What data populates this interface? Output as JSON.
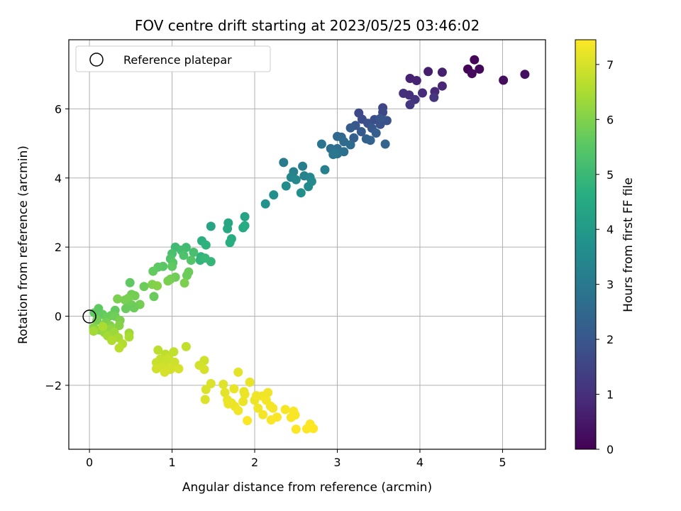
{
  "chart_data": {
    "type": "scatter",
    "title": "FOV centre drift starting at 2023/05/25 03:46:02",
    "xlabel": "Angular distance from reference (arcmin)",
    "ylabel": "Rotation from reference (arcmin)",
    "xlim": [
      -0.25,
      5.52
    ],
    "ylim": [
      -3.85,
      8.0
    ],
    "xticks": [
      0,
      1,
      2,
      3,
      4,
      5
    ],
    "xtick_labels": [
      "0",
      "1",
      "2",
      "3",
      "4",
      "5"
    ],
    "yticks": [
      -2,
      0,
      2,
      4,
      6
    ],
    "ytick_labels": [
      "−2",
      "0",
      "2",
      "4",
      "6"
    ],
    "grid": true,
    "legend": {
      "placement": "upper-left",
      "entries": [
        {
          "label": "Reference platepar",
          "marker": "open-circle",
          "x": 0,
          "y": 0
        }
      ]
    },
    "colorbar": {
      "label": "Hours from first FF file",
      "colormap": "viridis",
      "range": [
        0,
        7.45
      ],
      "ticks": [
        0,
        1,
        2,
        3,
        4,
        5,
        6,
        7
      ],
      "tick_labels": [
        "0",
        "1",
        "2",
        "3",
        "4",
        "5",
        "6",
        "7"
      ]
    },
    "series": [
      {
        "points": [
          [
            4.58,
            7.15,
            0.05
          ],
          [
            4.66,
            7.42,
            0.1
          ],
          [
            4.72,
            7.15,
            0.15
          ],
          [
            4.63,
            7.02,
            0.2
          ],
          [
            5.01,
            6.83,
            0.25
          ],
          [
            5.27,
            7.0,
            0.3
          ],
          [
            4.1,
            7.08,
            0.6
          ],
          [
            4.27,
            7.06,
            0.65
          ],
          [
            3.88,
            6.88,
            0.7
          ],
          [
            3.96,
            6.82,
            0.75
          ],
          [
            4.27,
            6.66,
            0.8
          ],
          [
            4.18,
            6.5,
            0.85
          ],
          [
            4.03,
            6.46,
            0.9
          ],
          [
            3.87,
            6.4,
            0.95
          ],
          [
            3.8,
            6.45,
            1.0
          ],
          [
            3.94,
            6.27,
            1.05
          ],
          [
            4.17,
            6.33,
            1.1
          ],
          [
            3.88,
            6.12,
            1.15
          ],
          [
            3.55,
            6.03,
            1.55
          ],
          [
            3.55,
            5.9,
            1.6
          ],
          [
            3.26,
            5.88,
            1.65
          ],
          [
            3.3,
            5.7,
            1.7
          ],
          [
            3.45,
            5.69,
            1.75
          ],
          [
            3.37,
            5.58,
            1.8
          ],
          [
            3.52,
            5.55,
            1.85
          ],
          [
            3.6,
            5.66,
            1.9
          ],
          [
            3.52,
            5.72,
            1.95
          ],
          [
            3.22,
            5.52,
            2.0
          ],
          [
            3.42,
            5.44,
            2.05
          ],
          [
            3.29,
            5.34,
            2.1
          ],
          [
            3.16,
            5.45,
            2.15
          ],
          [
            3.47,
            5.3,
            2.2
          ],
          [
            3.2,
            5.16,
            2.25
          ],
          [
            3.35,
            5.13,
            2.3
          ],
          [
            3.4,
            5.09,
            2.35
          ],
          [
            3.58,
            4.98,
            2.4
          ],
          [
            3.05,
            5.18,
            2.45
          ],
          [
            3.0,
            5.2,
            2.5
          ],
          [
            3.08,
            5.05,
            2.55
          ],
          [
            3.16,
            4.96,
            2.6
          ],
          [
            3.0,
            4.85,
            2.65
          ],
          [
            2.92,
            4.85,
            2.7
          ],
          [
            3.08,
            4.76,
            2.75
          ],
          [
            3.0,
            4.7,
            2.8
          ],
          [
            2.97,
            4.72,
            2.85
          ],
          [
            2.81,
            4.98,
            2.9
          ],
          [
            2.95,
            4.68,
            2.95
          ],
          [
            2.35,
            4.45,
            3.1
          ],
          [
            2.58,
            4.34,
            3.15
          ],
          [
            2.85,
            4.24,
            3.2
          ],
          [
            2.47,
            4.18,
            3.25
          ],
          [
            2.6,
            4.06,
            3.3
          ],
          [
            2.44,
            4.02,
            3.35
          ],
          [
            2.67,
            4.02,
            3.4
          ],
          [
            2.5,
            3.95,
            3.45
          ],
          [
            2.69,
            3.9,
            3.5
          ],
          [
            2.65,
            3.75,
            3.55
          ],
          [
            2.38,
            3.77,
            3.6
          ],
          [
            2.56,
            3.57,
            3.65
          ],
          [
            2.23,
            3.51,
            3.7
          ],
          [
            2.13,
            3.25,
            3.75
          ],
          [
            1.88,
            2.88,
            4.3
          ],
          [
            1.47,
            2.6,
            4.35
          ],
          [
            1.68,
            2.7,
            4.4
          ],
          [
            1.67,
            2.53,
            4.45
          ],
          [
            1.86,
            2.56,
            4.5
          ],
          [
            1.88,
            2.62,
            4.55
          ],
          [
            1.72,
            2.24,
            4.6
          ],
          [
            1.7,
            2.13,
            4.65
          ],
          [
            1.36,
            2.18,
            4.7
          ],
          [
            1.41,
            2.06,
            4.75
          ],
          [
            1.35,
            1.72,
            4.8
          ],
          [
            1.34,
            1.62,
            4.85
          ],
          [
            1.47,
            1.58,
            4.9
          ],
          [
            1.4,
            1.68,
            4.95
          ],
          [
            1.04,
            2.0,
            5.05
          ],
          [
            1.17,
            1.99,
            5.1
          ],
          [
            1.11,
            1.91,
            5.15
          ],
          [
            1.26,
            1.85,
            5.2
          ],
          [
            1.0,
            1.81,
            5.25
          ],
          [
            1.14,
            1.76,
            5.3
          ],
          [
            0.98,
            1.66,
            5.35
          ],
          [
            1.23,
            1.62,
            5.4
          ],
          [
            1.01,
            1.55,
            5.45
          ],
          [
            0.89,
            1.44,
            5.5
          ],
          [
            0.83,
            1.42,
            5.55
          ],
          [
            1.0,
            1.44,
            5.6
          ],
          [
            0.77,
            1.3,
            5.65
          ],
          [
            1.2,
            1.28,
            5.7
          ],
          [
            1.18,
            1.18,
            5.75
          ],
          [
            1.04,
            1.13,
            5.8
          ],
          [
            0.98,
            1.07,
            5.85
          ],
          [
            0.95,
            1.02,
            5.9
          ],
          [
            1.15,
            0.96,
            5.95
          ],
          [
            0.76,
            0.92,
            6.0
          ],
          [
            0.82,
            0.88,
            6.05
          ],
          [
            0.49,
            0.97,
            5.6
          ],
          [
            0.78,
            0.57,
            5.7
          ],
          [
            0.66,
            0.86,
            5.75
          ],
          [
            0.51,
            0.63,
            5.8
          ],
          [
            0.55,
            0.59,
            5.85
          ],
          [
            0.47,
            0.52,
            5.9
          ],
          [
            0.34,
            0.5,
            5.95
          ],
          [
            0.43,
            0.47,
            5.9
          ],
          [
            0.61,
            0.34,
            5.85
          ],
          [
            0.51,
            0.33,
            5.8
          ],
          [
            0.54,
            0.24,
            5.75
          ],
          [
            0.44,
            0.22,
            5.7
          ],
          [
            0.31,
            0.17,
            5.65
          ],
          [
            0.11,
            0.22,
            5.6
          ],
          [
            0.06,
            0.1,
            5.6
          ],
          [
            0.16,
            0.05,
            5.65
          ],
          [
            0.26,
            0.02,
            5.7
          ],
          [
            0.21,
            -0.05,
            5.75
          ],
          [
            0.31,
            0.0,
            5.8
          ],
          [
            0.09,
            -0.12,
            5.85
          ],
          [
            0.2,
            -0.18,
            5.9
          ],
          [
            0.37,
            -0.12,
            5.95
          ],
          [
            0.25,
            -0.27,
            6.0
          ],
          [
            0.36,
            -0.27,
            6.05
          ],
          [
            0.05,
            -0.33,
            6.1
          ],
          [
            0.12,
            -0.4,
            6.15
          ],
          [
            0.26,
            -0.37,
            6.2
          ],
          [
            0.18,
            -0.47,
            6.25
          ],
          [
            0.3,
            -0.46,
            6.3
          ],
          [
            0.48,
            -0.49,
            6.35
          ],
          [
            0.22,
            -0.57,
            6.4
          ],
          [
            0.35,
            -0.62,
            6.45
          ],
          [
            0.48,
            -0.6,
            6.5
          ],
          [
            0.27,
            -0.7,
            6.55
          ],
          [
            0.4,
            -0.8,
            6.6
          ],
          [
            0.36,
            -0.92,
            6.65
          ],
          [
            0.05,
            -0.43,
            6.4
          ],
          [
            0.16,
            -0.3,
            6.5
          ],
          [
            0.83,
            -0.98,
            6.7
          ],
          [
            0.92,
            -1.1,
            6.72
          ],
          [
            1.02,
            -1.03,
            6.75
          ],
          [
            1.17,
            -0.88,
            6.78
          ],
          [
            0.86,
            -1.24,
            6.8
          ],
          [
            0.96,
            -1.22,
            6.82
          ],
          [
            0.81,
            -1.34,
            6.84
          ],
          [
            0.92,
            -1.36,
            6.86
          ],
          [
            1.03,
            -1.33,
            6.88
          ],
          [
            0.89,
            -1.46,
            6.9
          ],
          [
            0.94,
            -1.48,
            6.92
          ],
          [
            0.81,
            -1.52,
            6.94
          ],
          [
            0.98,
            -1.54,
            6.96
          ],
          [
            0.91,
            -1.62,
            6.98
          ],
          [
            1.08,
            -1.52,
            7.0
          ],
          [
            0.94,
            -1.25,
            6.85
          ],
          [
            1.39,
            -1.28,
            6.9
          ],
          [
            1.33,
            -1.42,
            6.95
          ],
          [
            1.39,
            -1.54,
            7.0
          ],
          [
            1.41,
            -2.12,
            7.05
          ],
          [
            1.47,
            -1.95,
            7.05
          ],
          [
            1.62,
            -1.97,
            7.1
          ],
          [
            1.8,
            -1.62,
            7.15
          ],
          [
            1.4,
            -2.41,
            7.05
          ],
          [
            1.64,
            -2.21,
            7.15
          ],
          [
            1.75,
            -2.1,
            7.2
          ],
          [
            1.87,
            -2.18,
            7.2
          ],
          [
            1.67,
            -2.42,
            7.2
          ],
          [
            1.72,
            -2.51,
            7.25
          ],
          [
            1.76,
            -2.61,
            7.25
          ],
          [
            1.68,
            -2.54,
            7.25
          ],
          [
            1.86,
            -2.47,
            7.25
          ],
          [
            1.8,
            -2.73,
            7.3
          ],
          [
            1.94,
            -1.91,
            7.2
          ],
          [
            1.88,
            -2.26,
            7.25
          ],
          [
            2.0,
            -2.43,
            7.25
          ],
          [
            2.09,
            -2.31,
            7.3
          ],
          [
            2.16,
            -2.21,
            7.3
          ],
          [
            2.04,
            -2.66,
            7.3
          ],
          [
            2.14,
            -2.43,
            7.35
          ],
          [
            2.1,
            -2.85,
            7.35
          ],
          [
            2.22,
            -2.66,
            7.35
          ],
          [
            2.2,
            -3.0,
            7.4
          ],
          [
            1.91,
            -3.02,
            7.4
          ],
          [
            2.19,
            -2.6,
            7.35
          ],
          [
            2.37,
            -2.7,
            7.38
          ],
          [
            2.47,
            -2.75,
            7.4
          ],
          [
            2.49,
            -2.86,
            7.4
          ],
          [
            2.44,
            -2.93,
            7.4
          ],
          [
            2.5,
            -3.27,
            7.45
          ],
          [
            2.63,
            -3.26,
            7.45
          ],
          [
            2.67,
            -3.12,
            7.45
          ],
          [
            2.71,
            -3.25,
            7.45
          ],
          [
            2.02,
            -2.3,
            7.3
          ],
          [
            2.27,
            -2.92,
            7.4
          ]
        ]
      }
    ]
  }
}
